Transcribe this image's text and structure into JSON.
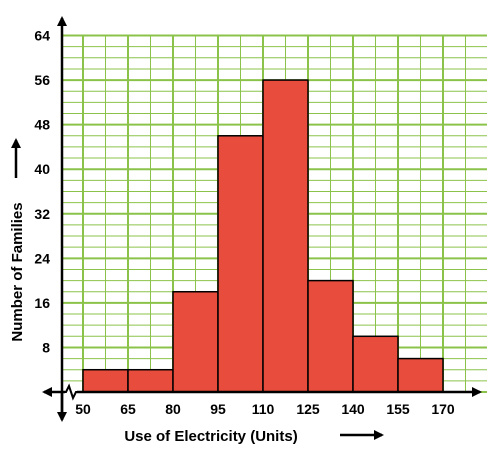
{
  "chart_data": {
    "type": "bar",
    "subtype": "histogram",
    "xlabel": "Use of Electricity (Units)",
    "ylabel": "Number of Families",
    "bins": [
      {
        "from": 50,
        "to": 65,
        "value": 4
      },
      {
        "from": 65,
        "to": 80,
        "value": 4
      },
      {
        "from": 80,
        "to": 95,
        "value": 18
      },
      {
        "from": 95,
        "to": 110,
        "value": 46
      },
      {
        "from": 110,
        "to": 125,
        "value": 56
      },
      {
        "from": 125,
        "to": 140,
        "value": 20
      },
      {
        "from": 140,
        "to": 155,
        "value": 10
      },
      {
        "from": 155,
        "to": 170,
        "value": 6
      }
    ],
    "x_ticks": [
      "50",
      "65",
      "80",
      "95",
      "110",
      "125",
      "140",
      "155",
      "170"
    ],
    "y_ticks": [
      "8",
      "16",
      "24",
      "32",
      "40",
      "48",
      "56",
      "64"
    ],
    "ylim": [
      0,
      64
    ],
    "y_axis_break": true,
    "x_axis_break": true,
    "grid": true,
    "colors": {
      "bar": "#e74c3c",
      "bar_outline": "#000000",
      "grid": "#8bc34a",
      "axis": "#000000"
    }
  }
}
